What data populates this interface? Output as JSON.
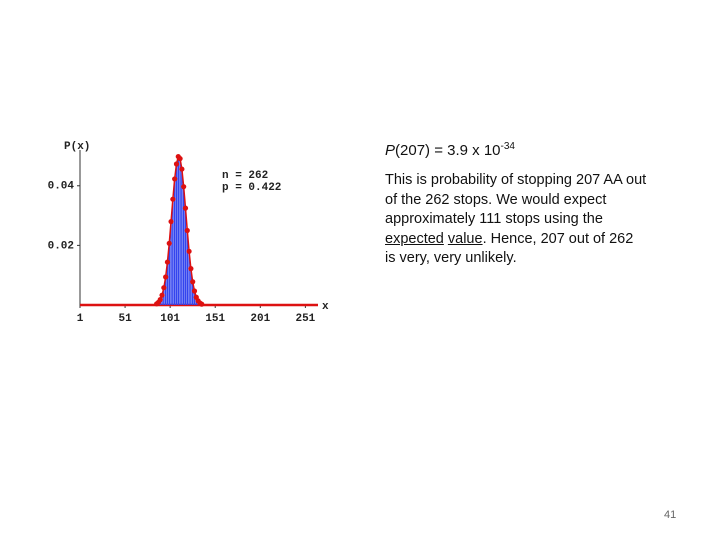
{
  "chart_data": {
    "type": "stem",
    "y_label": "P(x)",
    "x_label": "x",
    "annotations": [
      "n = 262",
      "p = 0.422"
    ],
    "x": [
      86,
      88,
      90,
      92,
      94,
      96,
      98,
      100,
      102,
      104,
      106,
      108,
      110,
      112,
      114,
      116,
      118,
      120,
      122,
      124,
      126,
      128,
      130,
      132,
      134,
      136
    ],
    "series": [
      {
        "color": "#dd1111",
        "stem_color": "#3344ee",
        "values": [
          0.0004,
          0.0009,
          0.0018,
          0.0033,
          0.0058,
          0.0094,
          0.0144,
          0.0207,
          0.028,
          0.0355,
          0.0423,
          0.0473,
          0.0498,
          0.0491,
          0.0456,
          0.0397,
          0.0325,
          0.025,
          0.018,
          0.0122,
          0.0078,
          0.0047,
          0.0026,
          0.0014,
          0.0007,
          0.0003
        ]
      }
    ],
    "xlim": [
      1,
      265
    ],
    "xticks": [
      1,
      51,
      101,
      151,
      201,
      251
    ],
    "ylim": [
      0,
      0.052
    ],
    "yticks": [
      0.02,
      0.04
    ]
  },
  "text": {
    "formula": [
      "P",
      "(207) = 3.9 x 10",
      "-34"
    ],
    "lines": [
      "This is probability of stopping 207 AA out",
      "of the 262 stops.  We would expect",
      "approximately 111 stops using the"
    ],
    "line4": [
      "expected",
      "value",
      ".  Hence, 207 out of 262"
    ],
    "line5": "is very, very unlikely."
  },
  "page_number": "41"
}
